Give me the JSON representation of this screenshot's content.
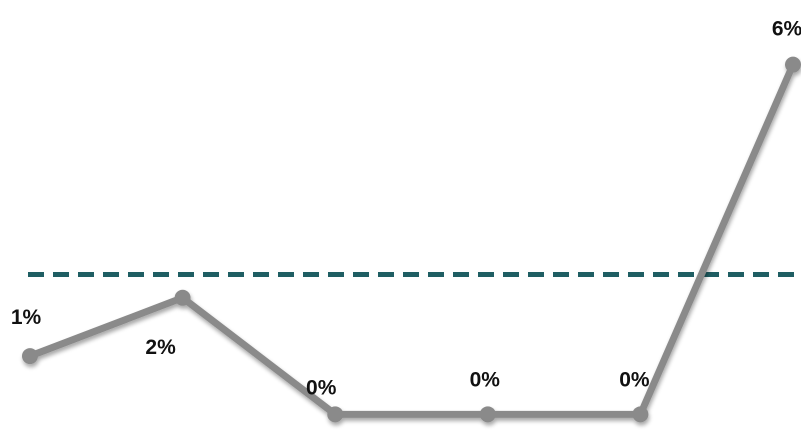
{
  "chart_data": {
    "type": "line",
    "x": [
      1,
      2,
      3,
      4,
      5,
      6
    ],
    "series": [
      {
        "values": [
          1,
          2,
          0,
          0,
          0,
          6
        ],
        "labels": [
          "1%",
          "2%",
          "0%",
          "0%",
          "0%",
          "6%"
        ],
        "color": "#8a8a8a"
      }
    ],
    "reference_line": {
      "value": 2.4,
      "style": "dashed",
      "color": "#1f5e63"
    },
    "ylim": [
      -0.2,
      6.2
    ],
    "grid": false,
    "legend": "none"
  }
}
